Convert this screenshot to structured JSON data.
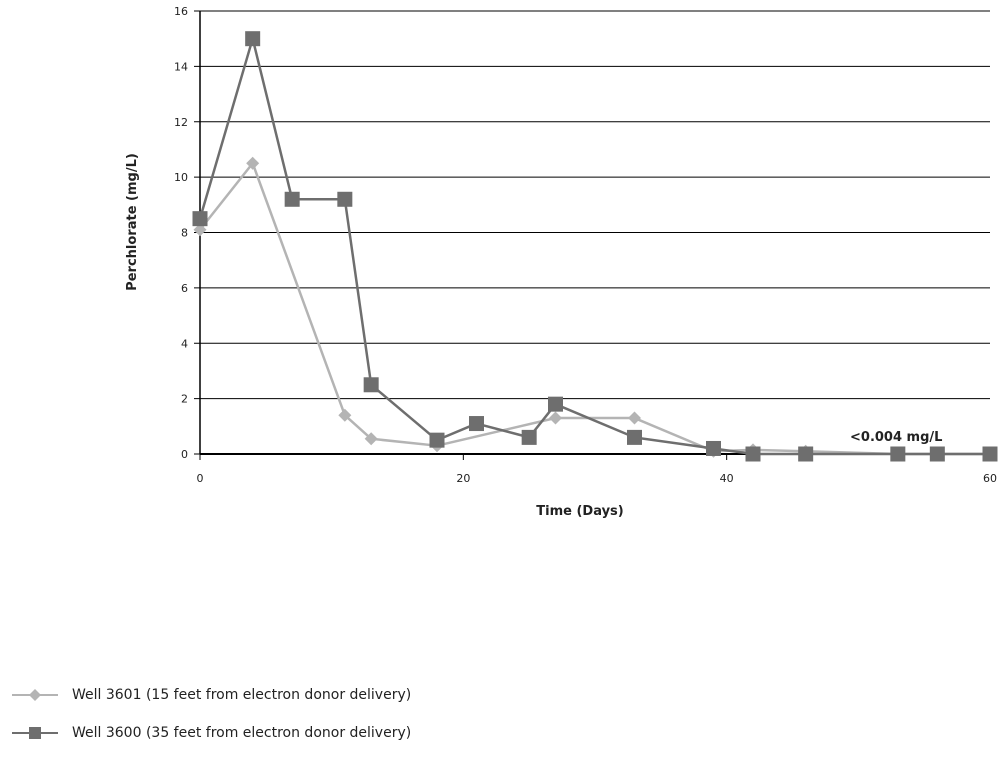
{
  "chart_data": {
    "type": "line",
    "xlabel": "Time (Days)",
    "ylabel": "Perchlorate (mg/L)",
    "xlim": [
      0,
      60
    ],
    "ylim": [
      0,
      16
    ],
    "xticks": [
      0,
      20,
      40,
      60
    ],
    "yticks": [
      0,
      2,
      4,
      6,
      8,
      10,
      12,
      14,
      16
    ],
    "grid": "horizontal",
    "legend_position": "bottom-left",
    "annotation": "<0.004 mg/L",
    "series": [
      {
        "name": "Well 3601 (15 feet from electron donor delivery)",
        "color": "#b4b4b4",
        "marker": "diamond",
        "x": [
          0,
          4,
          11,
          13,
          18,
          27,
          33,
          39,
          42,
          46,
          53,
          56,
          60
        ],
        "y": [
          8.1,
          10.5,
          1.4,
          0.55,
          0.3,
          1.3,
          1.3,
          0.1,
          0.15,
          0.1,
          0.0,
          0.0,
          0.0
        ]
      },
      {
        "name": "Well 3600 (35 feet from electron donor delivery)",
        "color": "#6e6e6e",
        "marker": "square",
        "x": [
          0,
          4,
          7,
          11,
          13,
          18,
          21,
          25,
          27,
          33,
          39,
          42,
          46,
          53,
          56,
          60
        ],
        "y": [
          8.5,
          15.0,
          9.2,
          9.2,
          2.5,
          0.5,
          1.1,
          0.6,
          1.8,
          0.6,
          0.2,
          0.0,
          0.0,
          0.0,
          0.0,
          0.0
        ]
      }
    ]
  }
}
